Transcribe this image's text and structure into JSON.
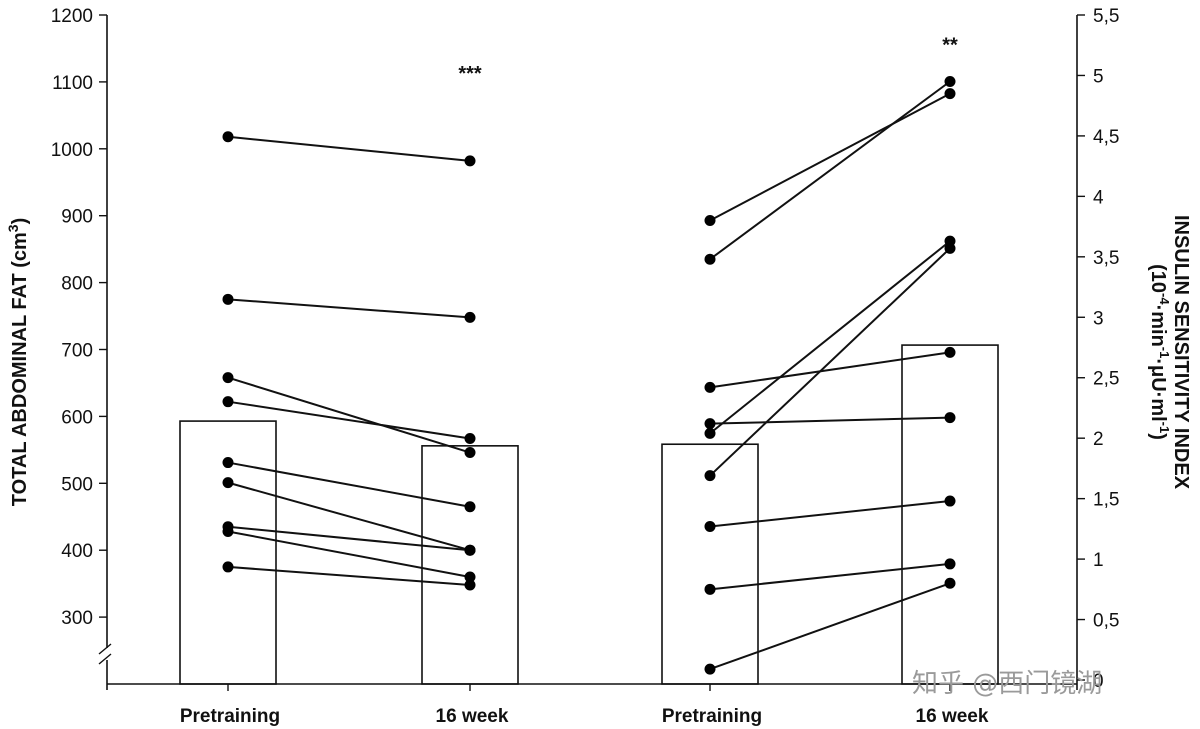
{
  "chart_data": {
    "type": "bar",
    "left_axis": {
      "label_main": "TOTAL ABDOMINAL FAT (cm",
      "label_sup": "3",
      "label_end": ")",
      "ticks": [
        300,
        400,
        500,
        600,
        700,
        800,
        900,
        1000,
        1100,
        1200
      ],
      "range": [
        200,
        1200
      ],
      "axis_break": true
    },
    "right_axis": {
      "label_line1": "INSULIN SENSITIVITY INDEX",
      "label_line2_parts": [
        {
          "t": "(10",
          "sup": false
        },
        {
          "t": "-4",
          "sup": true
        },
        {
          "t": "·min",
          "sup": false
        },
        {
          "t": "-1",
          "sup": true
        },
        {
          "t": "·μU·ml",
          "sup": false
        },
        {
          "t": "-1",
          "sup": true
        },
        {
          "t": ")",
          "sup": false
        }
      ],
      "ticks": [
        "0",
        "0,5",
        "1",
        "1,5",
        "2",
        "2,5",
        "3",
        "3,5",
        "4",
        "4,5",
        "5",
        "5,5"
      ],
      "range": [
        0,
        5.5
      ]
    },
    "categories": [
      "Pretraining",
      "16 week",
      "Pretraining",
      "16 week"
    ],
    "groups": [
      {
        "name": "Total abdominal fat",
        "axis": "left",
        "bars": [
          593,
          556
        ],
        "significance": "***",
        "significance_value": 1103,
        "subjects": [
          [
            1018,
            982
          ],
          [
            775,
            748
          ],
          [
            658,
            546
          ],
          [
            622,
            567
          ],
          [
            531,
            465
          ],
          [
            501,
            400
          ],
          [
            435,
            400
          ],
          [
            428,
            360
          ],
          [
            375,
            348
          ]
        ]
      },
      {
        "name": "Insulin sensitivity index",
        "axis": "right",
        "bars": [
          1.95,
          2.77
        ],
        "significance": "**",
        "significance_value": 5.2,
        "subjects": [
          [
            3.8,
            4.85
          ],
          [
            3.48,
            4.95
          ],
          [
            2.42,
            2.71
          ],
          [
            2.12,
            2.17
          ],
          [
            2.04,
            3.63
          ],
          [
            1.69,
            3.57
          ],
          [
            1.27,
            1.48
          ],
          [
            0.75,
            0.96
          ],
          [
            0.09,
            0.8
          ]
        ]
      }
    ]
  },
  "watermark": "知乎 @西门镜湖"
}
